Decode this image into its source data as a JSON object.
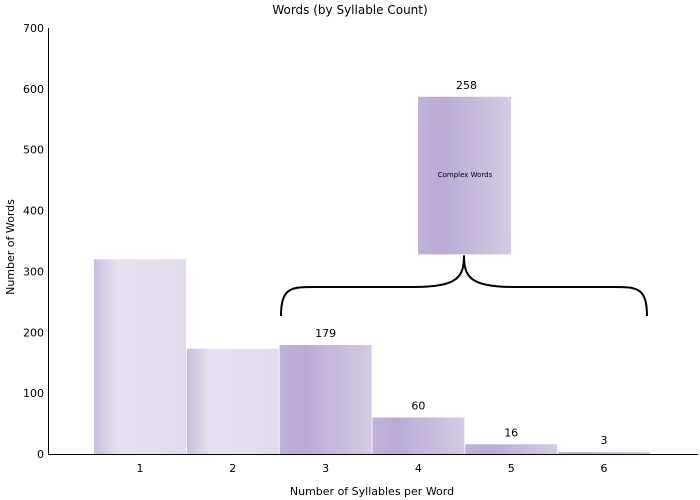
{
  "chart_data": {
    "type": "bar",
    "title": "Words (by Syllable Count)",
    "xlabel": "Number of Syllables per Word",
    "ylabel": "Number of Words",
    "categories": [
      "1",
      "2",
      "3",
      "4",
      "5",
      "6"
    ],
    "values": [
      320,
      173,
      179,
      60,
      16,
      3
    ],
    "data_labels": [
      "",
      "",
      "179",
      "60",
      "16",
      "3"
    ],
    "ylim": [
      0,
      700
    ],
    "yticks": [
      0,
      100,
      200,
      300,
      400,
      500,
      600,
      700
    ],
    "grid": false,
    "legend": "none",
    "bar_colors": {
      "light": [
        "#c9bedd",
        "#e6e0ef",
        "#e3dcee"
      ],
      "dark": [
        "#c0b2d8",
        "#b9abd4",
        "#d4cae3"
      ]
    },
    "callout": {
      "label": "Complex Words",
      "value_label": "258",
      "value": 258,
      "value_start": 328,
      "value_end": 587,
      "spans_categories": [
        "3",
        "4",
        "5",
        "6"
      ]
    }
  }
}
